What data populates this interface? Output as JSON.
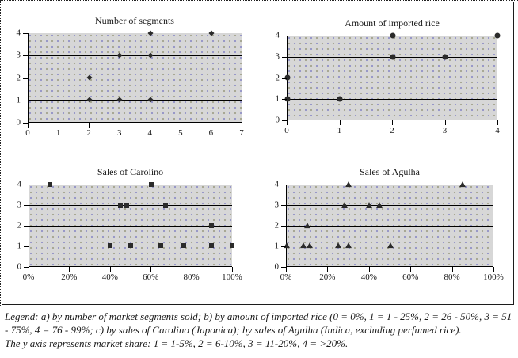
{
  "figure": {
    "legend_lines": [
      "Legend: a) by number of market segments sold; b) by amount of imported rice (0 = 0%, 1 = 1 - 25%, 2 = 26 - 50%, 3 = 51 - 75%, 4 = 76 - 99%; c) by sales of Carolino (Japonica); by sales of Agulha (Indica, excluding perfumed rice).",
      "The y axis represents market share: 1 = 1-5%, 2 = 6-10%, 3 = 11-20%, 4 = >20%."
    ]
  },
  "colors": {
    "plot_background": "#d7d7d7",
    "pattern_dot_blue": "#9191c6",
    "pattern_dot_olive": "#a3a38c",
    "marker": "#2b2b2b",
    "axis": "#000000"
  },
  "chart_data": [
    {
      "type": "scatter",
      "marker": "diamond",
      "title": "Number of segments",
      "xlabel": "",
      "ylabel": "",
      "xlim": [
        0,
        7
      ],
      "ylim": [
        0,
        4
      ],
      "x_ticks": [
        "0",
        "1",
        "2",
        "3",
        "4",
        "5",
        "6",
        "7"
      ],
      "y_ticks": [
        "0",
        "1",
        "2",
        "3",
        "4"
      ],
      "gridlines_y": [
        1,
        2,
        3
      ],
      "legend_position": "none",
      "points": [
        [
          2,
          1
        ],
        [
          2,
          2
        ],
        [
          3,
          1
        ],
        [
          3,
          3
        ],
        [
          4,
          1
        ],
        [
          4,
          3
        ],
        [
          4,
          4
        ],
        [
          6,
          4
        ]
      ]
    },
    {
      "type": "scatter",
      "marker": "circle",
      "title": "Amount of imported rice",
      "xlabel": "",
      "ylabel": "",
      "xlim": [
        0,
        4
      ],
      "ylim": [
        0,
        4
      ],
      "x_ticks": [
        "0",
        "1",
        "2",
        "3",
        "4"
      ],
      "y_ticks": [
        "0",
        "1",
        "2",
        "3",
        "4"
      ],
      "gridlines_y": [
        1,
        2,
        3,
        4
      ],
      "legend_position": "none",
      "points": [
        [
          0,
          1
        ],
        [
          0,
          2
        ],
        [
          1,
          1
        ],
        [
          2,
          3
        ],
        [
          2,
          4
        ],
        [
          3,
          3
        ],
        [
          4,
          4
        ]
      ]
    },
    {
      "type": "scatter",
      "marker": "square",
      "title": "Sales of Carolino",
      "xlabel": "",
      "ylabel": "",
      "xlim": [
        0,
        100
      ],
      "ylim": [
        0,
        4
      ],
      "x_ticks": [
        "0%",
        "20%",
        "40%",
        "60%",
        "80%",
        "100%"
      ],
      "y_ticks": [
        "0",
        "1",
        "2",
        "3",
        "4"
      ],
      "gridlines_y": [
        1,
        2,
        3
      ],
      "legend_position": "none",
      "points": [
        [
          10,
          4
        ],
        [
          60,
          4
        ],
        [
          45,
          3
        ],
        [
          48,
          3
        ],
        [
          67,
          3
        ],
        [
          90,
          2
        ],
        [
          40,
          1
        ],
        [
          50,
          1
        ],
        [
          65,
          1
        ],
        [
          76,
          1
        ],
        [
          90,
          1
        ],
        [
          100,
          1
        ]
      ]
    },
    {
      "type": "scatter",
      "marker": "triangle",
      "title": "Sales of Agulha",
      "xlabel": "",
      "ylabel": "",
      "xlim": [
        0,
        100
      ],
      "ylim": [
        0,
        4
      ],
      "x_ticks": [
        "0%",
        "20%",
        "40%",
        "60%",
        "80%",
        "100%"
      ],
      "y_ticks": [
        "0",
        "1",
        "2",
        "3",
        "4"
      ],
      "gridlines_y": [
        1,
        2,
        3
      ],
      "legend_position": "none",
      "points": [
        [
          30,
          4
        ],
        [
          85,
          4
        ],
        [
          28,
          3
        ],
        [
          40,
          3
        ],
        [
          45,
          3
        ],
        [
          10,
          2
        ],
        [
          0,
          1
        ],
        [
          8,
          1
        ],
        [
          11,
          1
        ],
        [
          25,
          1
        ],
        [
          30,
          1
        ],
        [
          50,
          1
        ]
      ]
    }
  ]
}
